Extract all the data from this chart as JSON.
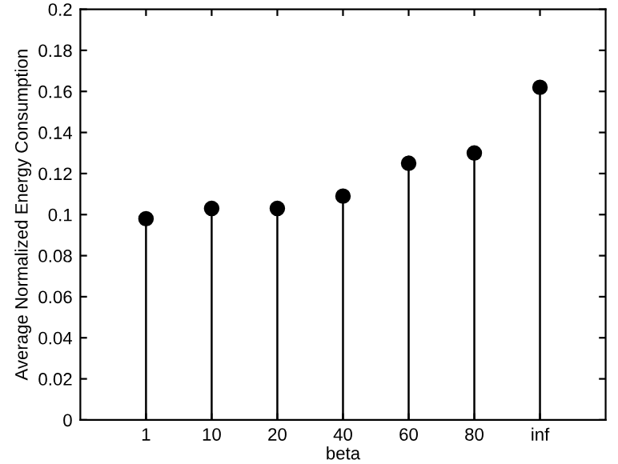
{
  "chart_data": {
    "type": "lollipop",
    "xlabel": "beta",
    "ylabel": "Average Normalized Energy Consumption",
    "categories": [
      "1",
      "10",
      "20",
      "40",
      "60",
      "80",
      "inf"
    ],
    "values": [
      0.098,
      0.103,
      0.103,
      0.109,
      0.125,
      0.13,
      0.162
    ],
    "color": "#000000",
    "marker": "circle",
    "ylim": [
      0,
      0.2
    ],
    "yticks": [
      0,
      0.02,
      0.04,
      0.06,
      0.08,
      0.1,
      0.12,
      0.14,
      0.16,
      0.18,
      0.2
    ]
  }
}
